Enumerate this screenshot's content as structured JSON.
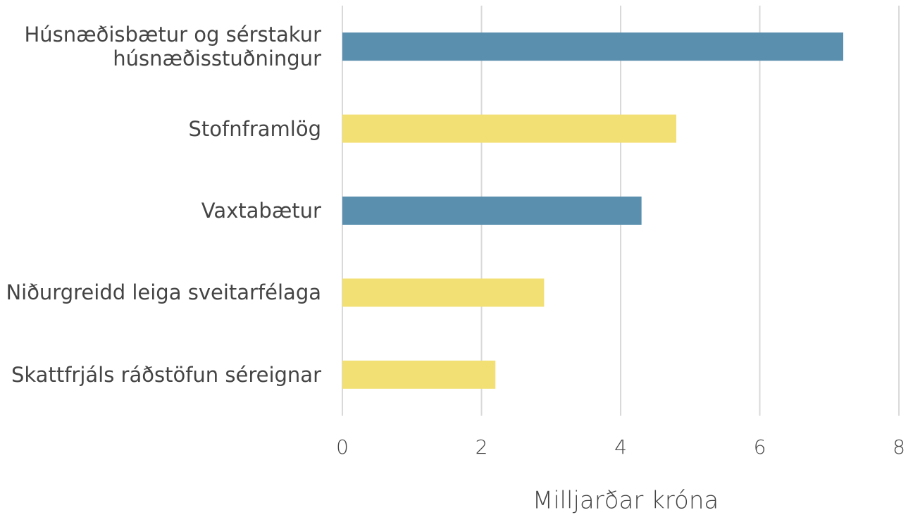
{
  "chart_data": {
    "type": "bar",
    "orientation": "horizontal",
    "categories": [
      "Húsnæðisbætur og sérstakur húsnæðisstuðningur",
      "Stofnframlög",
      "Vaxtabætur",
      "Niðurgreidd leiga sveitarfélaga",
      "Skattfrjáls ráðstöfun séreignar"
    ],
    "values": [
      7.2,
      4.8,
      4.3,
      2.9,
      2.2
    ],
    "colors": [
      "#5a8fae",
      "#f2e075",
      "#5a8fae",
      "#f2e075",
      "#f2e075"
    ],
    "xlabel": "Milljarðar króna",
    "xlim": [
      0,
      8
    ],
    "xticks": [
      0,
      2,
      4,
      6,
      8
    ],
    "grid": true
  }
}
